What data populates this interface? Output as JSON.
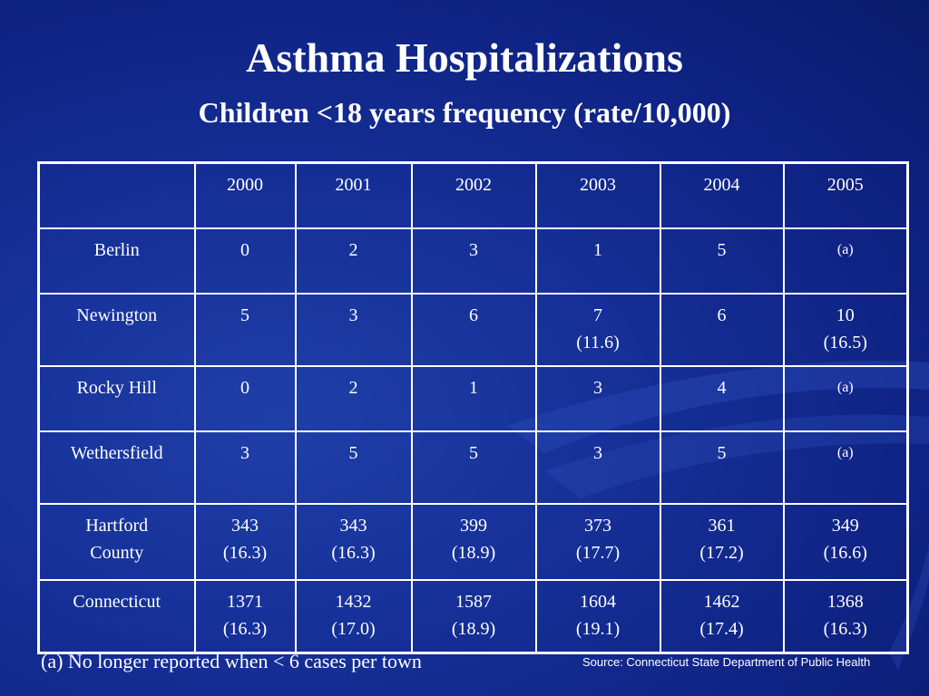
{
  "title": "Asthma Hospitalizations",
  "subtitle": "Children <18 years frequency (rate/10,000)",
  "table": {
    "headers": [
      "",
      "2000",
      "2001",
      "2002",
      "2003",
      "2004",
      "2005"
    ],
    "rows": [
      {
        "label": [
          "Berlin"
        ],
        "cells": [
          [
            "0"
          ],
          [
            "2"
          ],
          [
            "3"
          ],
          [
            "1"
          ],
          [
            "5"
          ],
          [
            "(a)"
          ]
        ]
      },
      {
        "label": [
          "Newington"
        ],
        "cells": [
          [
            "5"
          ],
          [
            "3"
          ],
          [
            "6"
          ],
          [
            "7",
            "(11.6)"
          ],
          [
            "6"
          ],
          [
            "10",
            "(16.5)"
          ]
        ]
      },
      {
        "label": [
          "Rocky Hill"
        ],
        "cells": [
          [
            "0"
          ],
          [
            "2"
          ],
          [
            "1"
          ],
          [
            "3"
          ],
          [
            "4"
          ],
          [
            "(a)"
          ]
        ]
      },
      {
        "label": [
          "Wethersfield"
        ],
        "cells": [
          [
            "3"
          ],
          [
            "5"
          ],
          [
            "5"
          ],
          [
            "3"
          ],
          [
            "5"
          ],
          [
            "(a)"
          ]
        ]
      },
      {
        "label": [
          "Hartford",
          "County"
        ],
        "cells": [
          [
            "343",
            "(16.3)"
          ],
          [
            "343",
            "(16.3)"
          ],
          [
            "399",
            "(18.9)"
          ],
          [
            "373",
            "(17.7)"
          ],
          [
            "361",
            "(17.2)"
          ],
          [
            "349",
            "(16.6)"
          ]
        ]
      },
      {
        "label": [
          "Connecticut"
        ],
        "cells": [
          [
            "1371",
            "(16.3)"
          ],
          [
            "1432",
            "(17.0)"
          ],
          [
            "1587",
            "(18.9)"
          ],
          [
            "1604",
            "(19.1)"
          ],
          [
            "1462",
            "(17.4)"
          ],
          [
            "1368",
            "(16.3)"
          ]
        ]
      }
    ]
  },
  "footnote": "(a) No longer reported when < 6 cases per town",
  "source": "Source: Connecticut State Department of Public Health",
  "colors": {
    "background": "#122a8c",
    "text": "#ffffff",
    "grid": "#ffffff"
  }
}
